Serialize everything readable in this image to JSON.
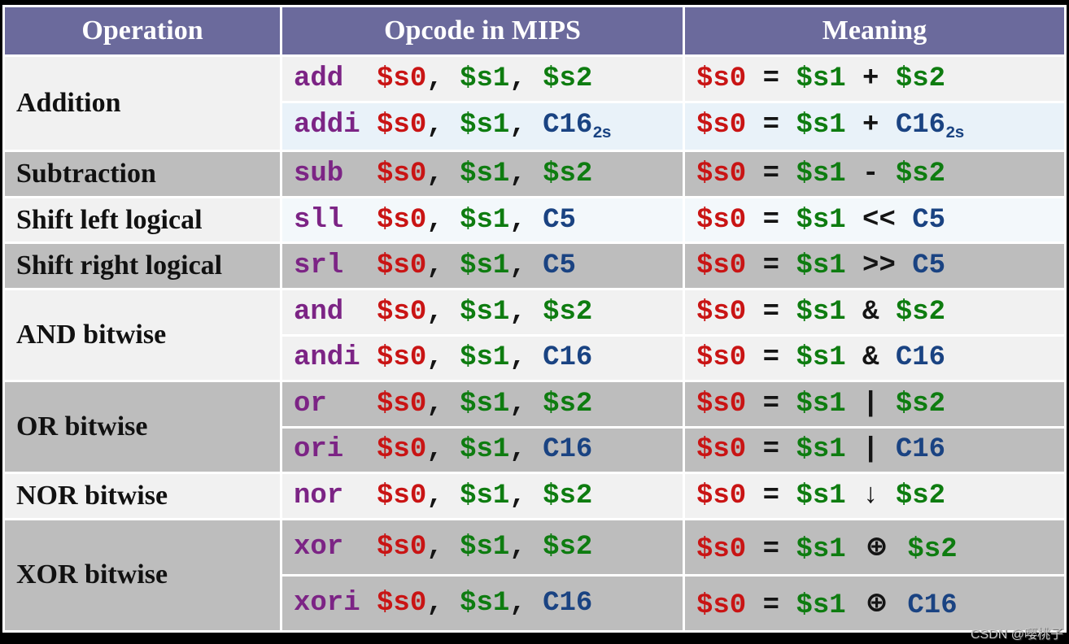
{
  "header": {
    "columns": [
      "Operation",
      "Opcode in MIPS",
      "Meaning"
    ]
  },
  "colors": {
    "header_bg": "#6b6a9c",
    "header_text": "#ffffff",
    "opcode_purple": "#7c2485",
    "dest_register_red": "#c91414",
    "source_register_green": "#0e7c10",
    "constant_navy": "#1a4382",
    "operator_black": "#141414",
    "row_light": "#f1f1f1",
    "row_gray": "#bdbdbd",
    "row_blue": "#e9f2f9",
    "row_paleblue": "#f3f8fb",
    "border_black": "#000000"
  },
  "watermark": {
    "text": "CSDN @嘤桃子"
  },
  "table": {
    "groups": [
      {
        "operation": "Addition",
        "shade": "light",
        "rows": [
          {
            "bg": "bg-light",
            "opcode": [
              {
                "t": "add  ",
                "c": "op"
              },
              {
                "t": "$s0",
                "c": "reg0"
              },
              {
                "t": ", ",
                "c": "plain"
              },
              {
                "t": "$s1",
                "c": "reg"
              },
              {
                "t": ", ",
                "c": "plain"
              },
              {
                "t": "$s2",
                "c": "reg"
              }
            ],
            "meaning": [
              {
                "t": "$s0",
                "c": "reg0"
              },
              {
                "t": " = ",
                "c": "plain"
              },
              {
                "t": "$s1",
                "c": "reg"
              },
              {
                "t": " + ",
                "c": "plain"
              },
              {
                "t": "$s2",
                "c": "reg"
              }
            ]
          },
          {
            "bg": "bg-blue",
            "opcode": [
              {
                "t": "addi ",
                "c": "op"
              },
              {
                "t": "$s0",
                "c": "reg0"
              },
              {
                "t": ", ",
                "c": "plain"
              },
              {
                "t": "$s1",
                "c": "reg"
              },
              {
                "t": ", ",
                "c": "plain"
              },
              {
                "t": "C16",
                "c": "const"
              },
              {
                "t": "2s",
                "c": "sub"
              }
            ],
            "meaning": [
              {
                "t": "$s0",
                "c": "reg0"
              },
              {
                "t": " = ",
                "c": "plain"
              },
              {
                "t": "$s1",
                "c": "reg"
              },
              {
                "t": " + ",
                "c": "plain"
              },
              {
                "t": "C16",
                "c": "const"
              },
              {
                "t": "2s",
                "c": "sub"
              }
            ]
          }
        ]
      },
      {
        "operation": "Subtraction",
        "shade": "gray",
        "rows": [
          {
            "bg": "bg-gray",
            "opcode": [
              {
                "t": "sub  ",
                "c": "op"
              },
              {
                "t": "$s0",
                "c": "reg0"
              },
              {
                "t": ", ",
                "c": "plain"
              },
              {
                "t": "$s1",
                "c": "reg"
              },
              {
                "t": ", ",
                "c": "plain"
              },
              {
                "t": "$s2",
                "c": "reg"
              }
            ],
            "meaning": [
              {
                "t": "$s0",
                "c": "reg0"
              },
              {
                "t": " = ",
                "c": "plain"
              },
              {
                "t": "$s1",
                "c": "reg"
              },
              {
                "t": " - ",
                "c": "plain"
              },
              {
                "t": "$s2",
                "c": "reg"
              }
            ]
          }
        ]
      },
      {
        "operation": "Shift left logical",
        "shade": "light",
        "rows": [
          {
            "bg": "bg-paleblue",
            "opcode": [
              {
                "t": "sll  ",
                "c": "op"
              },
              {
                "t": "$s0",
                "c": "reg0"
              },
              {
                "t": ", ",
                "c": "plain"
              },
              {
                "t": "$s1",
                "c": "reg"
              },
              {
                "t": ", ",
                "c": "plain"
              },
              {
                "t": "C5",
                "c": "const"
              }
            ],
            "meaning": [
              {
                "t": "$s0",
                "c": "reg0"
              },
              {
                "t": " = ",
                "c": "plain"
              },
              {
                "t": "$s1",
                "c": "reg"
              },
              {
                "t": " << ",
                "c": "plain"
              },
              {
                "t": "C5",
                "c": "const"
              }
            ]
          }
        ]
      },
      {
        "operation": "Shift right logical",
        "shade": "gray",
        "rows": [
          {
            "bg": "bg-gray",
            "opcode": [
              {
                "t": "srl  ",
                "c": "op"
              },
              {
                "t": "$s0",
                "c": "reg0"
              },
              {
                "t": ", ",
                "c": "plain"
              },
              {
                "t": "$s1",
                "c": "reg"
              },
              {
                "t": ", ",
                "c": "plain"
              },
              {
                "t": "C5",
                "c": "const"
              }
            ],
            "meaning": [
              {
                "t": "$s0",
                "c": "reg0"
              },
              {
                "t": " = ",
                "c": "plain"
              },
              {
                "t": "$s1",
                "c": "reg"
              },
              {
                "t": " >> ",
                "c": "plain"
              },
              {
                "t": "C5",
                "c": "const"
              }
            ]
          }
        ]
      },
      {
        "operation": "AND bitwise",
        "shade": "light",
        "rows": [
          {
            "bg": "bg-light",
            "opcode": [
              {
                "t": "and  ",
                "c": "op"
              },
              {
                "t": "$s0",
                "c": "reg0"
              },
              {
                "t": ", ",
                "c": "plain"
              },
              {
                "t": "$s1",
                "c": "reg"
              },
              {
                "t": ", ",
                "c": "plain"
              },
              {
                "t": "$s2",
                "c": "reg"
              }
            ],
            "meaning": [
              {
                "t": "$s0",
                "c": "reg0"
              },
              {
                "t": " = ",
                "c": "plain"
              },
              {
                "t": "$s1",
                "c": "reg"
              },
              {
                "t": " & ",
                "c": "plain"
              },
              {
                "t": "$s2",
                "c": "reg"
              }
            ]
          },
          {
            "bg": "bg-light",
            "opcode": [
              {
                "t": "andi ",
                "c": "op"
              },
              {
                "t": "$s0",
                "c": "reg0"
              },
              {
                "t": ", ",
                "c": "plain"
              },
              {
                "t": "$s1",
                "c": "reg"
              },
              {
                "t": ", ",
                "c": "plain"
              },
              {
                "t": "C16",
                "c": "const"
              }
            ],
            "meaning": [
              {
                "t": "$s0",
                "c": "reg0"
              },
              {
                "t": " = ",
                "c": "plain"
              },
              {
                "t": "$s1",
                "c": "reg"
              },
              {
                "t": " & ",
                "c": "plain"
              },
              {
                "t": "C16",
                "c": "const"
              }
            ]
          }
        ]
      },
      {
        "operation": "OR bitwise",
        "shade": "gray",
        "rows": [
          {
            "bg": "bg-gray",
            "opcode": [
              {
                "t": "or   ",
                "c": "op"
              },
              {
                "t": "$s0",
                "c": "reg0"
              },
              {
                "t": ", ",
                "c": "plain"
              },
              {
                "t": "$s1",
                "c": "reg"
              },
              {
                "t": ", ",
                "c": "plain"
              },
              {
                "t": "$s2",
                "c": "reg"
              }
            ],
            "meaning": [
              {
                "t": "$s0",
                "c": "reg0"
              },
              {
                "t": " = ",
                "c": "plain"
              },
              {
                "t": "$s1",
                "c": "reg"
              },
              {
                "t": " | ",
                "c": "plain"
              },
              {
                "t": "$s2",
                "c": "reg"
              }
            ]
          },
          {
            "bg": "bg-gray",
            "opcode": [
              {
                "t": "ori  ",
                "c": "op"
              },
              {
                "t": "$s0",
                "c": "reg0"
              },
              {
                "t": ", ",
                "c": "plain"
              },
              {
                "t": "$s1",
                "c": "reg"
              },
              {
                "t": ", ",
                "c": "plain"
              },
              {
                "t": "C16",
                "c": "const"
              }
            ],
            "meaning": [
              {
                "t": "$s0",
                "c": "reg0"
              },
              {
                "t": " = ",
                "c": "plain"
              },
              {
                "t": "$s1",
                "c": "reg"
              },
              {
                "t": " | ",
                "c": "plain"
              },
              {
                "t": "C16",
                "c": "const"
              }
            ]
          }
        ]
      },
      {
        "operation": "NOR bitwise",
        "shade": "light",
        "rows": [
          {
            "bg": "bg-light",
            "opcode": [
              {
                "t": "nor  ",
                "c": "op"
              },
              {
                "t": "$s0",
                "c": "reg0"
              },
              {
                "t": ", ",
                "c": "plain"
              },
              {
                "t": "$s1",
                "c": "reg"
              },
              {
                "t": ", ",
                "c": "plain"
              },
              {
                "t": "$s2",
                "c": "reg"
              }
            ],
            "meaning": [
              {
                "t": "$s0",
                "c": "reg0"
              },
              {
                "t": " = ",
                "c": "plain"
              },
              {
                "t": "$s1",
                "c": "reg"
              },
              {
                "t": " ↓ ",
                "c": "plain"
              },
              {
                "t": "$s2",
                "c": "reg"
              }
            ]
          }
        ]
      },
      {
        "operation": "XOR bitwise",
        "shade": "gray",
        "rows": [
          {
            "bg": "bg-gray",
            "opcode": [
              {
                "t": "xor  ",
                "c": "op"
              },
              {
                "t": "$s0",
                "c": "reg0"
              },
              {
                "t": ", ",
                "c": "plain"
              },
              {
                "t": "$s1",
                "c": "reg"
              },
              {
                "t": ", ",
                "c": "plain"
              },
              {
                "t": "$s2",
                "c": "reg"
              }
            ],
            "meaning": [
              {
                "t": "$s0",
                "c": "reg0"
              },
              {
                "t": " = ",
                "c": "plain"
              },
              {
                "t": "$s1",
                "c": "reg"
              },
              {
                "t": " ",
                "c": "plain"
              },
              {
                "t": "⊕",
                "c": "oplus"
              },
              {
                "t": " ",
                "c": "plain"
              },
              {
                "t": "$s2",
                "c": "reg"
              }
            ]
          },
          {
            "bg": "bg-gray",
            "opcode": [
              {
                "t": "xori ",
                "c": "op"
              },
              {
                "t": "$s0",
                "c": "reg0"
              },
              {
                "t": ", ",
                "c": "plain"
              },
              {
                "t": "$s1",
                "c": "reg"
              },
              {
                "t": ", ",
                "c": "plain"
              },
              {
                "t": "C16",
                "c": "const"
              }
            ],
            "meaning": [
              {
                "t": "$s0",
                "c": "reg0"
              },
              {
                "t": " = ",
                "c": "plain"
              },
              {
                "t": "$s1",
                "c": "reg"
              },
              {
                "t": " ",
                "c": "plain"
              },
              {
                "t": "⊕",
                "c": "oplus"
              },
              {
                "t": " ",
                "c": "plain"
              },
              {
                "t": "C16",
                "c": "const"
              }
            ]
          }
        ]
      }
    ]
  }
}
